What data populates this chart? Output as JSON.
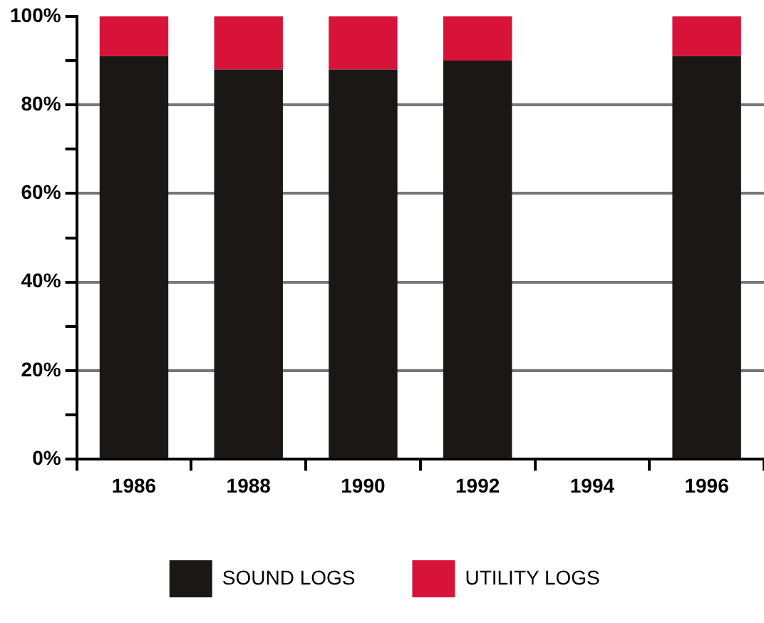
{
  "chart_data": {
    "type": "bar",
    "stacked": true,
    "categories": [
      "1986",
      "1988",
      "1990",
      "1992",
      "1994",
      "1996"
    ],
    "series": [
      {
        "name": "SOUND LOGS",
        "color": "#1a1714",
        "values": [
          91,
          88,
          88,
          90,
          0,
          91
        ]
      },
      {
        "name": "UTILITY LOGS",
        "color": "#d8133a",
        "values": [
          9,
          12,
          12,
          10,
          0,
          9
        ]
      }
    ],
    "ylim": [
      0,
      100
    ],
    "yticks": [
      {
        "value": 0,
        "label": "0%"
      },
      {
        "value": 10,
        "label": null
      },
      {
        "value": 20,
        "label": "20%"
      },
      {
        "value": 30,
        "label": null
      },
      {
        "value": 40,
        "label": "40%"
      },
      {
        "value": 50,
        "label": null
      },
      {
        "value": 60,
        "label": "60%"
      },
      {
        "value": 70,
        "label": null
      },
      {
        "value": 80,
        "label": "80%"
      },
      {
        "value": 90,
        "label": null
      },
      {
        "value": 100,
        "label": "100%"
      }
    ],
    "grid": "y",
    "legend": "bottom"
  }
}
